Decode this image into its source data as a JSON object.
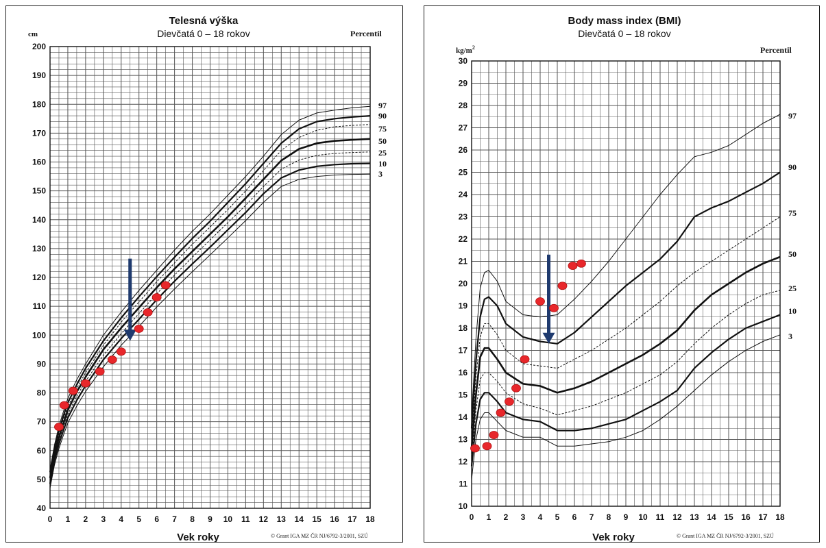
{
  "colors": {
    "grid": "#555555",
    "curve": "#111111",
    "point": "#e8272b",
    "arrow": "#1f3a6e"
  },
  "chart_data": [
    {
      "type": "line",
      "title": "Telesná výška",
      "subtitle": "Dievčatá 0 – 18 rokov",
      "ylabel": "cm",
      "xlabel": "Vek roky",
      "legend_title": "Percentil",
      "source": "© Grant IGA MZ ČR NJ/6792-3/2001, SZÚ",
      "xlim": [
        0,
        18
      ],
      "ylim": [
        40,
        200
      ],
      "xticks": [
        "0",
        "1",
        "2",
        "3",
        "4",
        "5",
        "6",
        "7",
        "8",
        "9",
        "10",
        "11",
        "12",
        "13",
        "14",
        "15",
        "16",
        "17",
        "18"
      ],
      "yticks": [
        "40",
        "50",
        "60",
        "70",
        "80",
        "90",
        "100",
        "110",
        "120",
        "130",
        "140",
        "150",
        "160",
        "170",
        "180",
        "190",
        "200"
      ],
      "grid": true,
      "percentile_labels": [
        "97",
        "90",
        "75",
        "50",
        "25",
        "10",
        "3"
      ],
      "x": [
        0,
        0.25,
        0.5,
        0.75,
        1,
        1.5,
        2,
        3,
        4,
        5,
        6,
        7,
        8,
        9,
        10,
        11,
        12,
        13,
        14,
        15,
        16,
        17,
        18
      ],
      "series": [
        {
          "name": "97",
          "width": 1,
          "dash": false,
          "values": [
            53.5,
            62,
            68.5,
            73.5,
            78,
            84.5,
            90,
            100,
            108,
            115.5,
            122.5,
            129.5,
            136,
            142,
            148.5,
            155,
            162,
            169.5,
            174.5,
            177,
            178,
            178.8,
            179.3
          ]
        },
        {
          "name": "90",
          "width": 2.2,
          "dash": false,
          "values": [
            52.5,
            60.5,
            67,
            72,
            76.5,
            82.8,
            88.5,
            98,
            106,
            113.3,
            120.3,
            127,
            133.5,
            139.5,
            146,
            152.5,
            159.5,
            166.5,
            171.5,
            174,
            175,
            175.6,
            176
          ]
        },
        {
          "name": "75",
          "width": 1,
          "dash": true,
          "values": [
            51.5,
            59.5,
            66,
            71,
            75.2,
            81.5,
            87,
            96.5,
            104.5,
            111.5,
            118.5,
            125,
            131.5,
            137.5,
            143.5,
            150,
            157,
            164,
            168.5,
            171,
            172.2,
            172.7,
            173
          ]
        },
        {
          "name": "50",
          "width": 2.6,
          "dash": false,
          "values": [
            50.5,
            58.5,
            64.5,
            69.5,
            74,
            80.3,
            85.5,
            95,
            102.5,
            109.5,
            116.5,
            123,
            129,
            135,
            141,
            147.5,
            154,
            160.5,
            164.5,
            166.5,
            167.3,
            167.7,
            168
          ]
        },
        {
          "name": "25",
          "width": 1,
          "dash": true,
          "values": [
            49.5,
            57.5,
            63.5,
            68.3,
            72.5,
            78.8,
            84,
            93,
            100.5,
            107.5,
            114.3,
            120.8,
            127,
            133,
            139,
            145,
            151.5,
            157.5,
            160.7,
            162.3,
            163,
            163.3,
            163.5
          ]
        },
        {
          "name": "10",
          "width": 2.2,
          "dash": false,
          "values": [
            48.5,
            56.5,
            62.3,
            67,
            71.3,
            77.4,
            82.5,
            91.5,
            98.8,
            105.5,
            112.3,
            118.7,
            124.7,
            130.5,
            136.5,
            142.5,
            149,
            154.5,
            157.2,
            158.5,
            159.1,
            159.4,
            159.5
          ]
        },
        {
          "name": "3",
          "width": 1,
          "dash": false,
          "values": [
            47,
            55,
            60.7,
            65.3,
            69.5,
            75.4,
            80.5,
            89,
            96.5,
            103,
            109.8,
            116,
            122,
            127.8,
            133.7,
            139.7,
            146,
            151.5,
            154,
            155,
            155.5,
            155.7,
            155.8
          ]
        }
      ],
      "points": [
        {
          "x": 0.5,
          "y": 68.2
        },
        {
          "x": 0.8,
          "y": 75.7
        },
        {
          "x": 1.3,
          "y": 80.7
        },
        {
          "x": 2,
          "y": 83.3
        },
        {
          "x": 2.8,
          "y": 87.4
        },
        {
          "x": 3.5,
          "y": 91.5
        },
        {
          "x": 4,
          "y": 94.3
        },
        {
          "x": 5,
          "y": 102.2
        },
        {
          "x": 5.5,
          "y": 107.9
        },
        {
          "x": 6,
          "y": 113.1
        },
        {
          "x": 6.5,
          "y": 117.3
        }
      ],
      "arrow": {
        "x": 4.5,
        "from": 126.5,
        "to": 98
      }
    },
    {
      "type": "line",
      "title": "Body mass index (BMI)",
      "subtitle": "Dievčatá 0 – 18 rokov",
      "ylabel": "kg/m",
      "ylabel_sup": "2",
      "xlabel": "Vek roky",
      "legend_title": "Percentil",
      "source": "© Grant IGA MZ ČR NJ/6792-3/2001, SZÚ",
      "xlim": [
        0,
        18
      ],
      "ylim": [
        10,
        30
      ],
      "xticks": [
        "0",
        "1",
        "2",
        "3",
        "4",
        "5",
        "6",
        "7",
        "8",
        "9",
        "10",
        "11",
        "12",
        "13",
        "14",
        "15",
        "16",
        "17",
        "18"
      ],
      "yticks": [
        "10",
        "11",
        "12",
        "13",
        "14",
        "15",
        "16",
        "17",
        "18",
        "19",
        "20",
        "21",
        "22",
        "23",
        "24",
        "25",
        "26",
        "27",
        "28",
        "29",
        "30"
      ],
      "grid": true,
      "percentile_labels": [
        "97",
        "90",
        "75",
        "50",
        "25",
        "10",
        "3"
      ],
      "x": [
        0,
        0.25,
        0.5,
        0.75,
        1,
        1.5,
        2,
        3,
        4,
        5,
        6,
        7,
        8,
        9,
        10,
        11,
        12,
        13,
        14,
        15,
        16,
        17,
        18
      ],
      "series": [
        {
          "name": "97",
          "width": 1,
          "dash": false,
          "values": [
            14,
            17.5,
            19.8,
            20.5,
            20.6,
            20.1,
            19.2,
            18.6,
            18.5,
            18.6,
            19.3,
            20.1,
            21,
            22,
            23,
            24,
            24.9,
            25.7,
            25.9,
            26.2,
            26.7,
            27.2,
            27.6
          ]
        },
        {
          "name": "90",
          "width": 2.2,
          "dash": false,
          "values": [
            13.5,
            16.5,
            18.5,
            19.3,
            19.4,
            19,
            18.2,
            17.6,
            17.4,
            17.3,
            17.8,
            18.5,
            19.2,
            19.9,
            20.5,
            21.1,
            21.9,
            23,
            23.4,
            23.7,
            24.1,
            24.5,
            25
          ]
        },
        {
          "name": "75",
          "width": 1,
          "dash": true,
          "values": [
            13,
            15.8,
            17.6,
            18.2,
            18.2,
            17.7,
            17,
            16.4,
            16.3,
            16.2,
            16.6,
            17,
            17.5,
            18,
            18.6,
            19.2,
            19.9,
            20.5,
            21,
            21.5,
            22,
            22.5,
            23
          ]
        },
        {
          "name": "50",
          "width": 2.6,
          "dash": false,
          "values": [
            12.6,
            15,
            16.7,
            17.1,
            17.1,
            16.6,
            16,
            15.5,
            15.4,
            15.1,
            15.3,
            15.6,
            16,
            16.4,
            16.8,
            17.3,
            17.9,
            18.8,
            19.5,
            20,
            20.5,
            20.9,
            21.2
          ]
        },
        {
          "name": "25",
          "width": 1,
          "dash": true,
          "values": [
            12.2,
            14.3,
            15.7,
            16,
            16,
            15.6,
            15.1,
            14.6,
            14.4,
            14.1,
            14.3,
            14.5,
            14.8,
            15.1,
            15.5,
            15.9,
            16.5,
            17.3,
            18,
            18.6,
            19.1,
            19.5,
            19.7
          ]
        },
        {
          "name": "10",
          "width": 2.2,
          "dash": false,
          "values": [
            11.8,
            13.7,
            14.8,
            15.1,
            15.1,
            14.7,
            14.2,
            13.9,
            13.8,
            13.4,
            13.4,
            13.5,
            13.7,
            13.9,
            14.3,
            14.7,
            15.2,
            16.2,
            16.9,
            17.5,
            18,
            18.3,
            18.6
          ]
        },
        {
          "name": "3",
          "width": 1,
          "dash": false,
          "values": [
            11.2,
            13,
            13.9,
            14.2,
            14.2,
            13.8,
            13.4,
            13.1,
            13.1,
            12.7,
            12.7,
            12.8,
            12.9,
            13.1,
            13.4,
            13.9,
            14.5,
            15.2,
            15.9,
            16.5,
            17,
            17.4,
            17.7
          ]
        }
      ],
      "points": [
        {
          "x": 0.2,
          "y": 12.6
        },
        {
          "x": 0.9,
          "y": 12.7
        },
        {
          "x": 1.3,
          "y": 13.2
        },
        {
          "x": 1.7,
          "y": 14.2
        },
        {
          "x": 2.2,
          "y": 14.7
        },
        {
          "x": 2.6,
          "y": 15.3
        },
        {
          "x": 3.1,
          "y": 16.6
        },
        {
          "x": 4,
          "y": 19.2
        },
        {
          "x": 4.8,
          "y": 18.9
        },
        {
          "x": 5.3,
          "y": 19.9
        },
        {
          "x": 5.9,
          "y": 20.8
        },
        {
          "x": 6.4,
          "y": 20.9
        }
      ],
      "arrow": {
        "x": 4.5,
        "from": 21.3,
        "to": 17.3
      }
    }
  ]
}
